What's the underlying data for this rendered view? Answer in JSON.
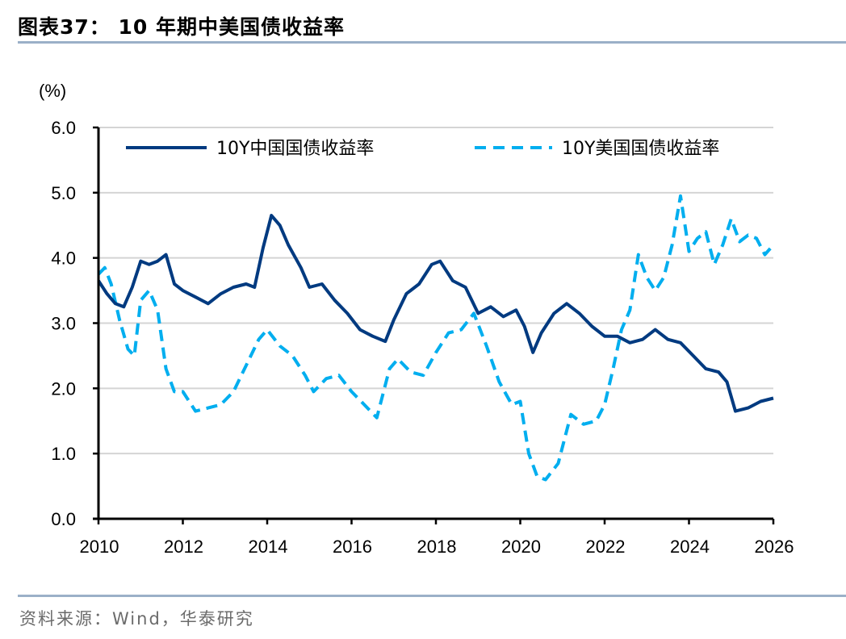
{
  "header": {
    "title": "图表37：  10 年期中美国债收益率"
  },
  "footer": {
    "source": "资料来源：Wind，华泰研究"
  },
  "colors": {
    "china": "#003A80",
    "us": "#00AEEF",
    "grid": "#d4d4d4",
    "rule": "#9bb0c8"
  },
  "chart_data": {
    "type": "line",
    "title": "10 年期中美国债收益率",
    "ylabel": "(%)",
    "xlabel": "",
    "xlim": [
      2010,
      2026
    ],
    "ylim": [
      0,
      6
    ],
    "xticks": [
      "2010",
      "2012",
      "2014",
      "2016",
      "2018",
      "2020",
      "2022",
      "2024",
      "2026"
    ],
    "yticks": [
      "0.0",
      "1.0",
      "2.0",
      "3.0",
      "4.0",
      "5.0",
      "6.0"
    ],
    "grid": true,
    "legend_position": "top",
    "series": [
      {
        "name": "10Y中国国债收益率",
        "style": "solid",
        "x": [
          2010.0,
          2010.2,
          2010.4,
          2010.6,
          2010.8,
          2011.0,
          2011.2,
          2011.4,
          2011.6,
          2011.8,
          2012.0,
          2012.3,
          2012.6,
          2012.9,
          2013.2,
          2013.5,
          2013.7,
          2013.9,
          2014.1,
          2014.3,
          2014.5,
          2014.8,
          2015.0,
          2015.3,
          2015.6,
          2015.9,
          2016.2,
          2016.5,
          2016.8,
          2017.0,
          2017.3,
          2017.6,
          2017.9,
          2018.1,
          2018.4,
          2018.7,
          2019.0,
          2019.3,
          2019.6,
          2019.9,
          2020.1,
          2020.3,
          2020.5,
          2020.8,
          2021.1,
          2021.4,
          2021.7,
          2022.0,
          2022.3,
          2022.6,
          2022.9,
          2023.2,
          2023.5,
          2023.8,
          2024.1,
          2024.4,
          2024.7,
          2024.9,
          2025.1,
          2025.4,
          2025.7,
          2026.0
        ],
        "values": [
          3.65,
          3.45,
          3.3,
          3.25,
          3.55,
          3.95,
          3.9,
          3.95,
          4.05,
          3.6,
          3.5,
          3.4,
          3.3,
          3.45,
          3.55,
          3.6,
          3.55,
          4.15,
          4.65,
          4.5,
          4.2,
          3.85,
          3.55,
          3.6,
          3.35,
          3.15,
          2.9,
          2.8,
          2.72,
          3.05,
          3.45,
          3.6,
          3.9,
          3.95,
          3.65,
          3.55,
          3.15,
          3.25,
          3.1,
          3.2,
          2.95,
          2.55,
          2.85,
          3.15,
          3.3,
          3.15,
          2.95,
          2.8,
          2.8,
          2.7,
          2.75,
          2.9,
          2.75,
          2.7,
          2.5,
          2.3,
          2.25,
          2.1,
          1.65,
          1.7,
          1.8,
          1.85
        ]
      },
      {
        "name": "10Y美国国债收益率",
        "style": "dashed",
        "x": [
          2010.0,
          2010.15,
          2010.3,
          2010.5,
          2010.7,
          2010.85,
          2011.0,
          2011.2,
          2011.4,
          2011.6,
          2011.8,
          2012.0,
          2012.3,
          2012.6,
          2012.9,
          2013.2,
          2013.5,
          2013.8,
          2014.0,
          2014.3,
          2014.6,
          2014.9,
          2015.1,
          2015.4,
          2015.7,
          2016.0,
          2016.3,
          2016.6,
          2016.9,
          2017.1,
          2017.4,
          2017.7,
          2018.0,
          2018.3,
          2018.6,
          2018.9,
          2019.2,
          2019.5,
          2019.8,
          2020.0,
          2020.2,
          2020.4,
          2020.6,
          2020.9,
          2021.2,
          2021.5,
          2021.8,
          2022.0,
          2022.2,
          2022.4,
          2022.6,
          2022.8,
          2023.0,
          2023.2,
          2023.4,
          2023.6,
          2023.8,
          2024.0,
          2024.2,
          2024.4,
          2024.6,
          2024.8,
          2025.0,
          2025.2,
          2025.4,
          2025.6,
          2025.8,
          2026.0
        ],
        "values": [
          3.75,
          3.85,
          3.6,
          3.05,
          2.6,
          2.5,
          3.35,
          3.5,
          3.2,
          2.3,
          1.95,
          1.95,
          1.65,
          1.7,
          1.75,
          1.95,
          2.35,
          2.75,
          2.9,
          2.65,
          2.5,
          2.2,
          1.95,
          2.15,
          2.2,
          1.95,
          1.75,
          1.55,
          2.3,
          2.45,
          2.25,
          2.2,
          2.55,
          2.85,
          2.9,
          3.15,
          2.65,
          2.1,
          1.75,
          1.8,
          1.0,
          0.65,
          0.6,
          0.85,
          1.6,
          1.45,
          1.5,
          1.75,
          2.3,
          2.9,
          3.2,
          4.05,
          3.7,
          3.5,
          3.7,
          4.2,
          4.95,
          4.1,
          4.3,
          4.4,
          3.9,
          4.2,
          4.6,
          4.25,
          4.35,
          4.3,
          4.05,
          4.2
        ]
      }
    ]
  }
}
